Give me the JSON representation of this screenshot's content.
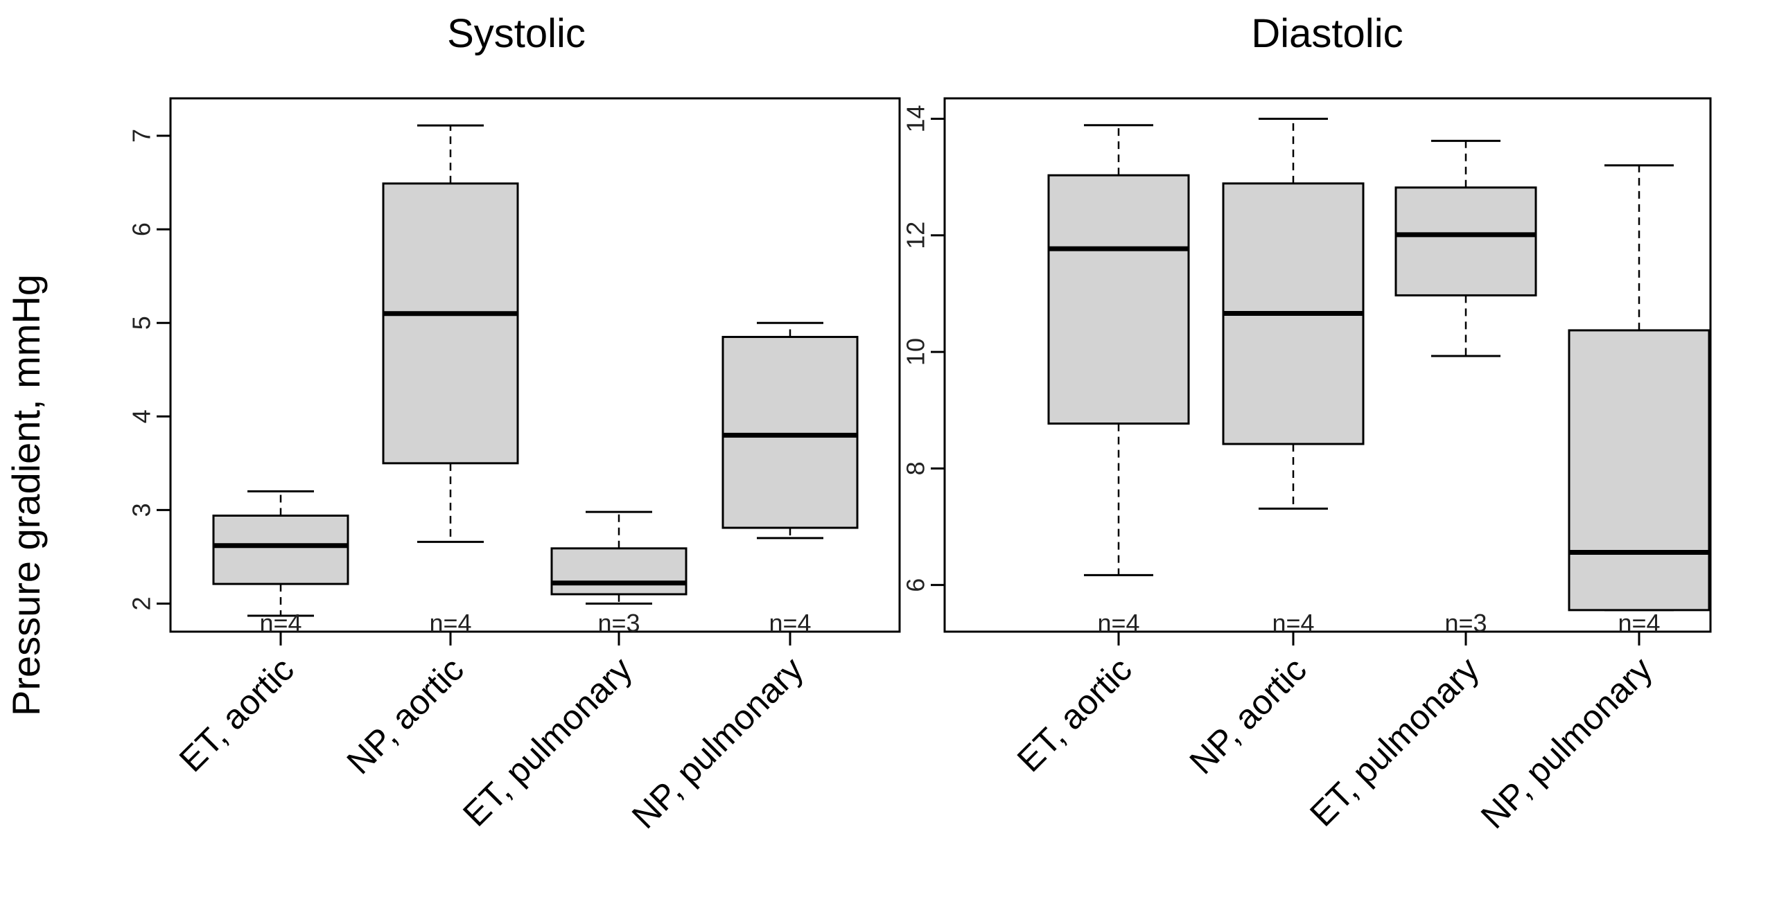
{
  "chart_data": [
    {
      "type": "boxplot",
      "title": "Systolic",
      "xlabel": "",
      "ylabel": "Pressure gradient, mmHg",
      "ylim": [
        1.7,
        7.4
      ],
      "yticks": [
        "2",
        "3",
        "4",
        "5",
        "6",
        "7"
      ],
      "categories": [
        "ET, aortic",
        "NP, aortic",
        "ET, pulmonary",
        "NP, pulmonary"
      ],
      "n_labels": [
        "n=4",
        "n=4",
        "n=3",
        "n=4"
      ],
      "boxes": [
        {
          "min": 1.87,
          "q1": 2.21,
          "median": 2.62,
          "q3": 2.94,
          "max": 3.2
        },
        {
          "min": 2.66,
          "q1": 3.5,
          "median": 5.1,
          "q3": 6.49,
          "max": 7.11
        },
        {
          "min": 2.0,
          "q1": 2.1,
          "median": 2.22,
          "q3": 2.59,
          "max": 2.98
        },
        {
          "min": 2.7,
          "q1": 2.81,
          "median": 3.8,
          "q3": 4.85,
          "max": 5.0
        }
      ]
    },
    {
      "type": "boxplot",
      "title": "Diastolic",
      "xlabel": "",
      "ylabel": "",
      "ylim": [
        5.2,
        14.35
      ],
      "yticks": [
        "6",
        "8",
        "10",
        "12",
        "14"
      ],
      "categories": [
        "ET, aortic",
        "NP, aortic",
        "ET, pulmonary",
        "NP, pulmonary"
      ],
      "n_labels": [
        "n=4",
        "n=4",
        "n=3",
        "n=4"
      ],
      "boxes": [
        {
          "min": 6.17,
          "q1": 8.77,
          "median": 11.77,
          "q3": 13.03,
          "max": 13.89
        },
        {
          "min": 7.31,
          "q1": 8.42,
          "median": 10.66,
          "q3": 12.89,
          "max": 14.0
        },
        {
          "min": 9.93,
          "q1": 10.97,
          "median": 12.01,
          "q3": 12.82,
          "max": 13.62
        },
        {
          "min": 5.57,
          "q1": 5.57,
          "median": 6.56,
          "q3": 10.37,
          "max": 13.2
        }
      ]
    }
  ]
}
